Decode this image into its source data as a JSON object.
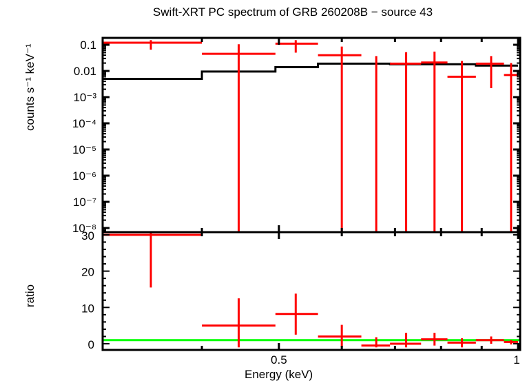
{
  "chart_data": [
    {
      "type": "scatter",
      "panel": "spectrum",
      "title": "Swift-XRT PC spectrum of GRB 260208B - source 43",
      "xlabel": "Energy (keV)",
      "ylabel": "counts s^-1 keV^-1",
      "xscale": "log",
      "yscale": "log",
      "xlim": [
        0.3,
        1.0
      ],
      "ylim": [
        3e-09,
        0.15
      ],
      "yticks": [
        "0.1",
        "0.01",
        "10^-3",
        "10^-4",
        "10^-5",
        "10^-6",
        "10^-7",
        "10^-8"
      ],
      "series": [
        {
          "name": "data",
          "color": "#ff0000",
          "points": [
            {
              "x": 0.345,
              "xlo": 0.3,
              "xhi": 0.4,
              "y": 0.12,
              "ylo": 0.065,
              "yhi": 0.15
            },
            {
              "x": 0.445,
              "xlo": 0.4,
              "xhi": 0.495,
              "y": 0.045,
              "ylo": 3e-09,
              "yhi": 0.105
            },
            {
              "x": 0.525,
              "xlo": 0.495,
              "xhi": 0.56,
              "y": 0.11,
              "ylo": 0.05,
              "yhi": 0.15
            },
            {
              "x": 0.6,
              "xlo": 0.56,
              "xhi": 0.635,
              "y": 0.04,
              "ylo": 3e-09,
              "yhi": 0.085
            },
            {
              "x": 0.663,
              "xlo": 0.635,
              "xhi": 0.69,
              "y": 0.0,
              "ylo": 3e-09,
              "yhi": 0.037
            },
            {
              "x": 0.723,
              "xlo": 0.69,
              "xhi": 0.755,
              "y": 0.019,
              "ylo": 3e-09,
              "yhi": 0.052
            },
            {
              "x": 0.785,
              "xlo": 0.755,
              "xhi": 0.815,
              "y": 0.021,
              "ylo": 3e-09,
              "yhi": 0.055
            },
            {
              "x": 0.85,
              "xlo": 0.815,
              "xhi": 0.885,
              "y": 0.006,
              "ylo": 3e-09,
              "yhi": 0.024
            },
            {
              "x": 0.925,
              "xlo": 0.885,
              "xhi": 0.96,
              "y": 0.019,
              "ylo": 0.0022,
              "yhi": 0.037
            },
            {
              "x": 0.98,
              "xlo": 0.96,
              "xhi": 1.0,
              "y": 0.007,
              "ylo": 3e-09,
              "yhi": 0.02
            }
          ]
        },
        {
          "name": "model",
          "color": "#000000",
          "step": [
            {
              "xlo": 0.3,
              "xhi": 0.4,
              "y": 0.005
            },
            {
              "xlo": 0.4,
              "xhi": 0.495,
              "y": 0.0095
            },
            {
              "xlo": 0.495,
              "xhi": 0.56,
              "y": 0.014
            },
            {
              "xlo": 0.56,
              "xhi": 0.69,
              "y": 0.019
            },
            {
              "xlo": 0.69,
              "xhi": 0.885,
              "y": 0.018
            },
            {
              "xlo": 0.885,
              "xhi": 1.0,
              "y": 0.016
            }
          ]
        }
      ]
    },
    {
      "type": "scatter",
      "panel": "ratio",
      "xlabel": "Energy (keV)",
      "ylabel": "ratio",
      "xscale": "log",
      "xlim": [
        0.3,
        1.0
      ],
      "ylim": [
        -1,
        31
      ],
      "yticks": [
        0,
        10,
        20,
        30
      ],
      "xticks": [
        "0.5",
        "1"
      ],
      "reference_line": {
        "y": 1,
        "color": "#00ff00"
      },
      "series": [
        {
          "name": "ratio",
          "color": "#ff0000",
          "points": [
            {
              "x": 0.345,
              "xlo": 0.3,
              "xhi": 0.4,
              "y": 30,
              "ylo": 15.5,
              "yhi": 31
            },
            {
              "x": 0.445,
              "xlo": 0.4,
              "xhi": 0.495,
              "y": 5,
              "ylo": -1,
              "yhi": 12.5
            },
            {
              "x": 0.525,
              "xlo": 0.495,
              "xhi": 0.56,
              "y": 8.2,
              "ylo": 2.5,
              "yhi": 13.8
            },
            {
              "x": 0.6,
              "xlo": 0.56,
              "xhi": 0.635,
              "y": 2.0,
              "ylo": -1,
              "yhi": 5.2
            },
            {
              "x": 0.663,
              "xlo": 0.635,
              "xhi": 0.69,
              "y": -0.5,
              "ylo": -1,
              "yhi": 1.8
            },
            {
              "x": 0.723,
              "xlo": 0.69,
              "xhi": 0.755,
              "y": 0.0,
              "ylo": -1,
              "yhi": 3.0
            },
            {
              "x": 0.785,
              "xlo": 0.755,
              "xhi": 0.815,
              "y": 1.2,
              "ylo": -0.5,
              "yhi": 3.0
            },
            {
              "x": 0.85,
              "xlo": 0.815,
              "xhi": 0.885,
              "y": 0.3,
              "ylo": -1,
              "yhi": 1.5
            },
            {
              "x": 0.925,
              "xlo": 0.885,
              "xhi": 0.96,
              "y": 1.0,
              "ylo": 0.0,
              "yhi": 2.0
            },
            {
              "x": 0.98,
              "xlo": 0.96,
              "xhi": 1.0,
              "y": 0.5,
              "ylo": -0.2,
              "yhi": 1.0
            }
          ]
        }
      ]
    }
  ],
  "labels": {
    "title": "Swift-XRT PC spectrum of GRB 260208B − source 43",
    "ylabel_top": "counts s⁻¹ keV⁻¹",
    "ylabel_bottom": "ratio",
    "xlabel": "Energy (keV)",
    "yticks_top": [
      "0.1",
      "0.01",
      "10⁻³",
      "10⁻⁴",
      "10⁻⁵",
      "10⁻⁶",
      "10⁻⁷",
      "10⁻⁸"
    ],
    "yticks_bottom": [
      "30",
      "20",
      "10",
      "0"
    ],
    "xticks": [
      "0.5",
      "1"
    ]
  },
  "colors": {
    "data": "#ff0000",
    "model": "#000000",
    "reference": "#00ff00",
    "frame": "#000000"
  }
}
